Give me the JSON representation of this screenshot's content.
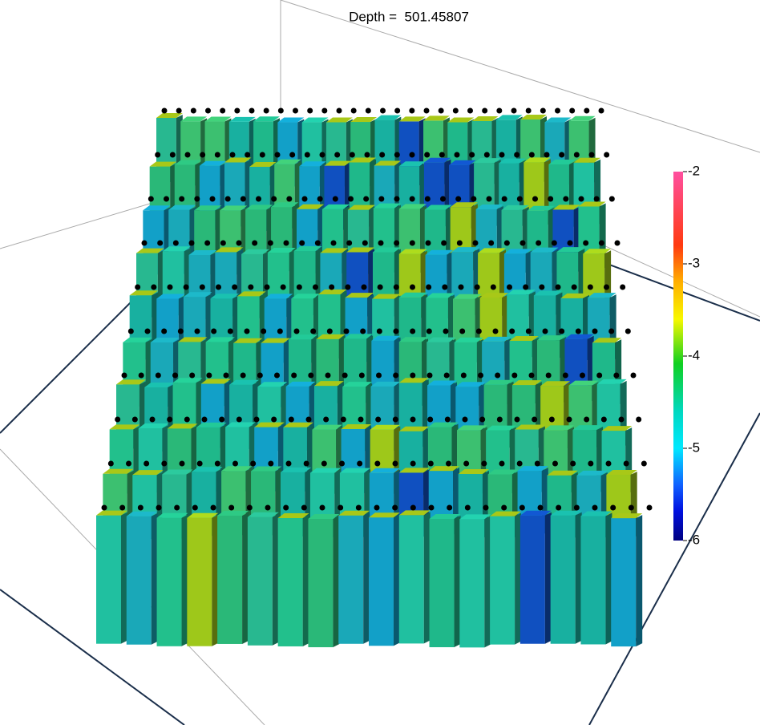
{
  "title": "Depth =  501.45807",
  "colorbar": {
    "range": [
      -6,
      -2
    ],
    "ticks": [
      -2,
      -3,
      -4,
      -5,
      -6
    ]
  }
}
